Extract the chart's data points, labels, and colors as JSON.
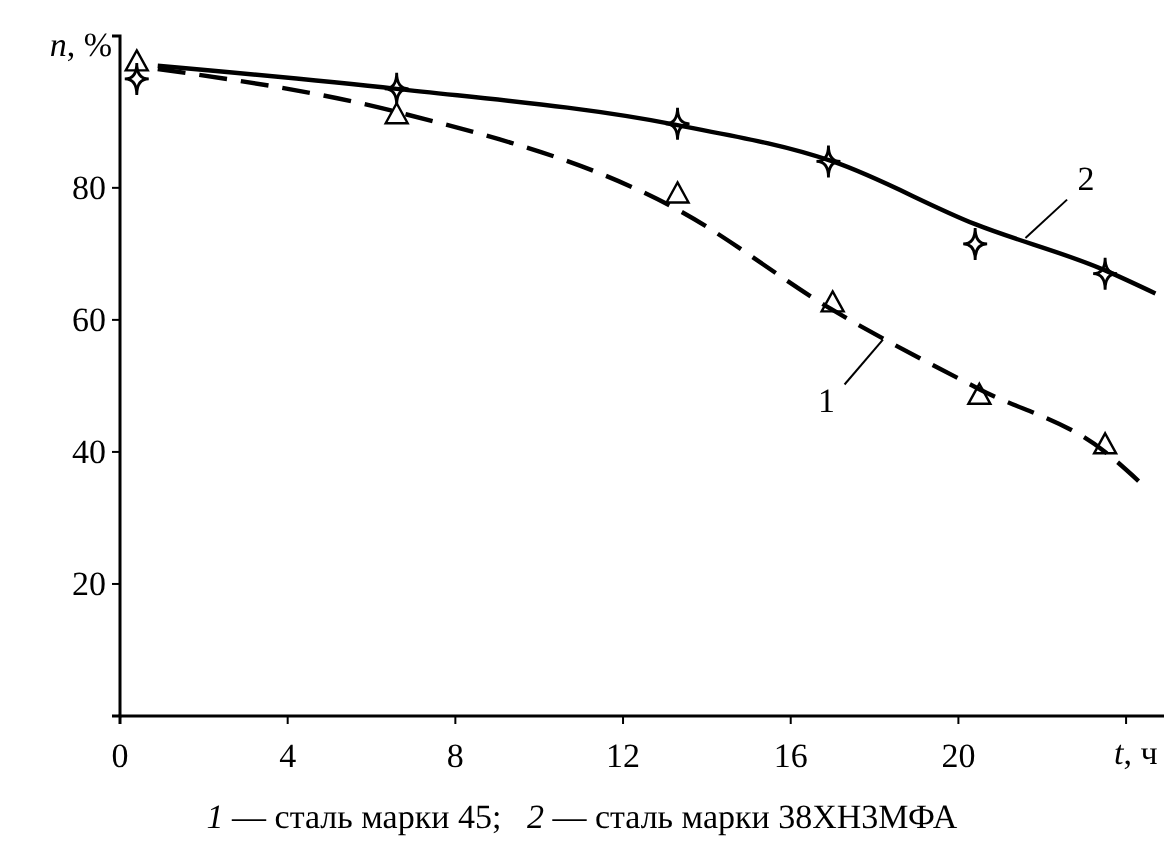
{
  "chart_data": {
    "type": "line",
    "xlabel": "t, ч",
    "ylabel": "n, %",
    "xlim": [
      0,
      25
    ],
    "ylim": [
      0,
      103
    ],
    "xticks": [
      0,
      4,
      8,
      12,
      16,
      20,
      {
        "value": 24,
        "label": null
      }
    ],
    "yticks": [
      20,
      40,
      60,
      80
    ],
    "grid": false,
    "series": [
      {
        "type": "scatter",
        "color": "#000000",
        "marker": "triangle",
        "x": [
          0.4,
          6.6,
          13.3,
          17,
          20.5,
          23.5
        ],
        "values": [
          99,
          91,
          79,
          62.5,
          48.5,
          41
        ]
      },
      {
        "type": "line",
        "color": "#000000",
        "marker": "none",
        "line_style": "dashed",
        "x": [
          0.9,
          6.6,
          13.3,
          17,
          20.5,
          23.5,
          24.4
        ],
        "values": [
          98,
          91.5,
          76.7,
          61.5,
          49.5,
          40,
          35
        ]
      },
      {
        "type": "scatter",
        "color": "#000000",
        "marker": "star",
        "x": [
          0.4,
          6.6,
          13.3,
          16.9,
          20.4,
          23.5
        ],
        "values": [
          96.5,
          95,
          89.7,
          84,
          71.5,
          67
        ]
      },
      {
        "type": "line",
        "color": "#000000",
        "marker": "none",
        "line_style": "solid",
        "x": [
          0.9,
          6.6,
          13.3,
          17,
          20.4,
          23.5,
          24.7
        ],
        "values": [
          98.5,
          95,
          89.5,
          84,
          74.5,
          67.5,
          64
        ]
      }
    ],
    "annotations": [
      {
        "text": "1",
        "x": 18.2,
        "y": 57
      },
      {
        "text": "2",
        "x": 21.6,
        "y": 72.4
      },
      "1 — сталь марки 45;   2 — сталь марки 38ХН3МФА"
    ]
  }
}
